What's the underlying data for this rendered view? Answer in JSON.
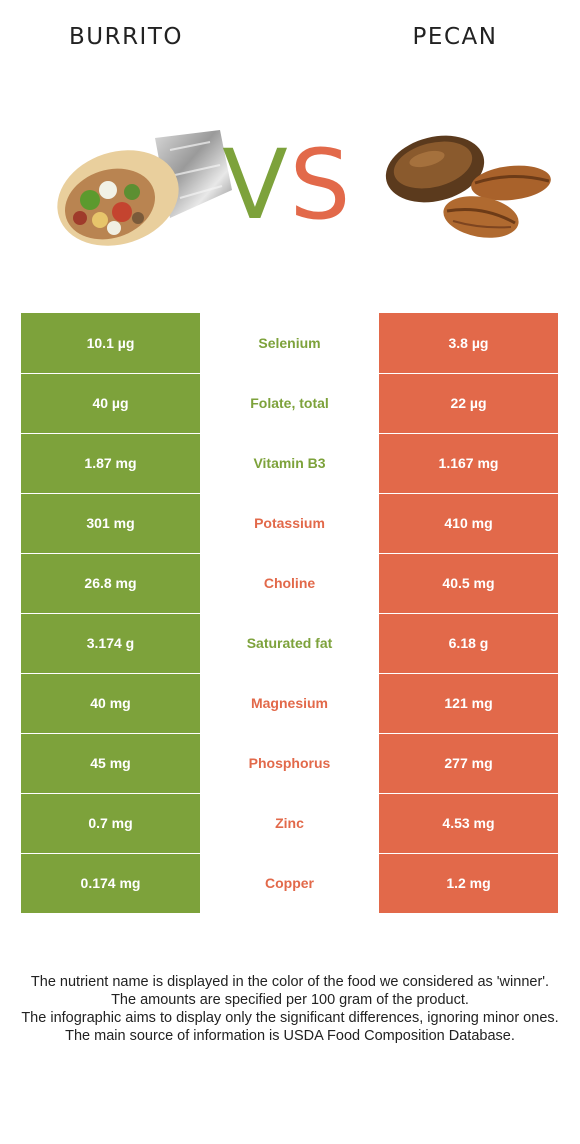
{
  "header": {
    "left_title": "BURRITO",
    "right_title": "PECAN"
  },
  "vs": {
    "v": "V",
    "s": "S",
    "v_color": "#7da23b",
    "s_color": "#e2694a"
  },
  "images": {
    "left": "burrito-illustration",
    "right": "pecan-illustration"
  },
  "colors": {
    "burrito": "#7da23b",
    "pecan": "#e2694a"
  },
  "rows": [
    {
      "left": "10.1 µg",
      "nutrient": "Selenium",
      "right": "3.8 µg",
      "winner": "left"
    },
    {
      "left": "40 µg",
      "nutrient": "Folate, total",
      "right": "22 µg",
      "winner": "left"
    },
    {
      "left": "1.87 mg",
      "nutrient": "Vitamin B3",
      "right": "1.167 mg",
      "winner": "left"
    },
    {
      "left": "301 mg",
      "nutrient": "Potassium",
      "right": "410 mg",
      "winner": "right"
    },
    {
      "left": "26.8 mg",
      "nutrient": "Choline",
      "right": "40.5 mg",
      "winner": "right"
    },
    {
      "left": "3.174 g",
      "nutrient": "Saturated fat",
      "right": "6.18 g",
      "winner": "left"
    },
    {
      "left": "40 mg",
      "nutrient": "Magnesium",
      "right": "121 mg",
      "winner": "right"
    },
    {
      "left": "45 mg",
      "nutrient": "Phosphorus",
      "right": "277 mg",
      "winner": "right"
    },
    {
      "left": "0.7 mg",
      "nutrient": "Zinc",
      "right": "4.53 mg",
      "winner": "right"
    },
    {
      "left": "0.174 mg",
      "nutrient": "Copper",
      "right": "1.2 mg",
      "winner": "right"
    }
  ],
  "footer": [
    "The nutrient name is displayed in the color of the food we considered as 'winner'.",
    "The amounts are specified per 100 gram of the product.",
    "The infographic aims to display only the significant differences, ignoring minor ones.",
    "The main source of information is USDA Food Composition Database."
  ]
}
